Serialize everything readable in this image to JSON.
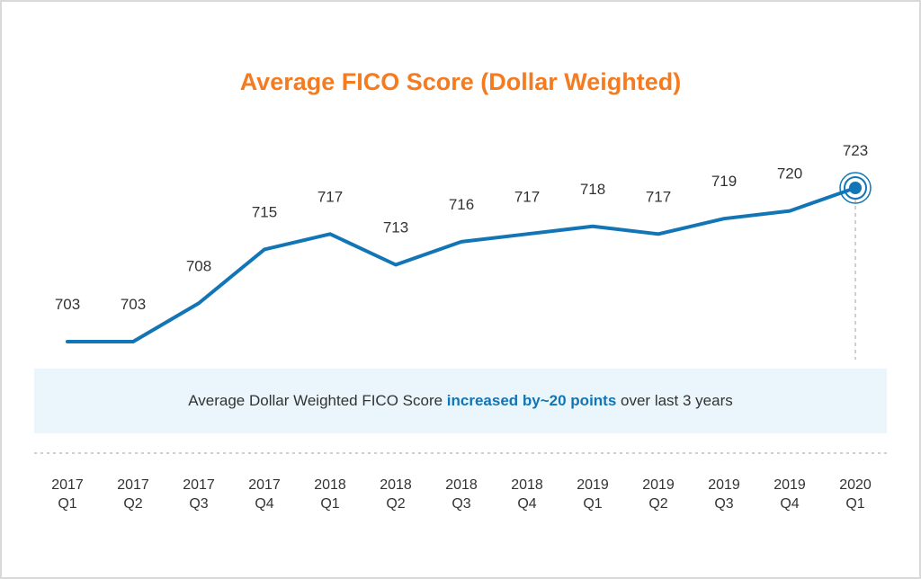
{
  "chart_data": {
    "type": "line",
    "title": "Average FICO Score (Dollar Weighted)",
    "categories": [
      [
        "2017",
        "Q1"
      ],
      [
        "2017",
        "Q2"
      ],
      [
        "2017",
        "Q3"
      ],
      [
        "2017",
        "Q4"
      ],
      [
        "2018",
        "Q1"
      ],
      [
        "2018",
        "Q2"
      ],
      [
        "2018",
        "Q3"
      ],
      [
        "2018",
        "Q4"
      ],
      [
        "2019",
        "Q1"
      ],
      [
        "2019",
        "Q2"
      ],
      [
        "2019",
        "Q3"
      ],
      [
        "2019",
        "Q4"
      ],
      [
        "2020",
        "Q1"
      ]
    ],
    "values": [
      703,
      703,
      708,
      715,
      717,
      713,
      716,
      717,
      718,
      717,
      719,
      720,
      723
    ],
    "xlabel": "",
    "ylabel": "",
    "grid": false,
    "highlight_last_point": true,
    "annotation": {
      "before": "Average Dollar Weighted FICO Score ",
      "highlight": "increased by~20 points",
      "after": " over last 3 years"
    },
    "colors": {
      "line": "#1275b6",
      "title": "#f47b20",
      "highlight_text": "#1275b6",
      "banner_bg": "#eaf6fb",
      "text": "#333333"
    }
  }
}
